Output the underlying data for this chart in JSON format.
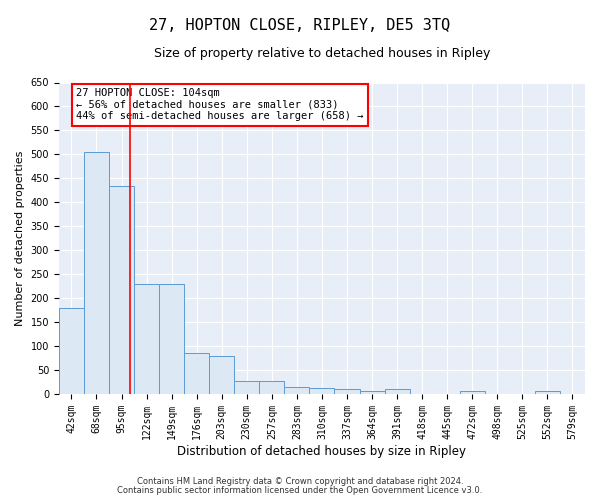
{
  "title": "27, HOPTON CLOSE, RIPLEY, DE5 3TQ",
  "subtitle": "Size of property relative to detached houses in Ripley",
  "xlabel": "Distribution of detached houses by size in Ripley",
  "ylabel": "Number of detached properties",
  "categories": [
    "42sqm",
    "68sqm",
    "95sqm",
    "122sqm",
    "149sqm",
    "176sqm",
    "203sqm",
    "230sqm",
    "257sqm",
    "283sqm",
    "310sqm",
    "337sqm",
    "364sqm",
    "391sqm",
    "418sqm",
    "445sqm",
    "472sqm",
    "498sqm",
    "525sqm",
    "552sqm",
    "579sqm"
  ],
  "values": [
    180,
    505,
    435,
    230,
    230,
    85,
    80,
    28,
    28,
    15,
    13,
    10,
    6,
    10,
    0,
    0,
    6,
    0,
    0,
    6,
    0
  ],
  "bar_color": "#dce9f5",
  "bar_edge_color": "#5b9bd5",
  "red_line_color": "red",
  "annotation_text": "27 HOPTON CLOSE: 104sqm\n← 56% of detached houses are smaller (833)\n44% of semi-detached houses are larger (658) →",
  "annotation_box_facecolor": "white",
  "annotation_box_edgecolor": "red",
  "ylim": [
    0,
    650
  ],
  "yticks": [
    0,
    50,
    100,
    150,
    200,
    250,
    300,
    350,
    400,
    450,
    500,
    550,
    600,
    650
  ],
  "background_color": "#e8eef8",
  "grid_color": "white",
  "footnote_line1": "Contains HM Land Registry data © Crown copyright and database right 2024.",
  "footnote_line2": "Contains public sector information licensed under the Open Government Licence v3.0.",
  "title_fontsize": 11,
  "subtitle_fontsize": 9,
  "xlabel_fontsize": 8.5,
  "ylabel_fontsize": 8,
  "tick_fontsize": 7,
  "annot_fontsize": 7.5,
  "footnote_fontsize": 6
}
